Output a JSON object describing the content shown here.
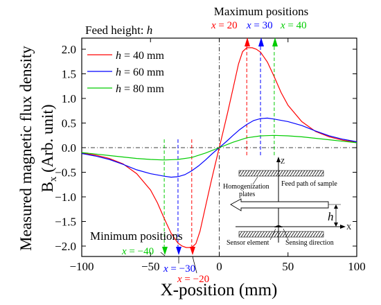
{
  "chart_data": {
    "type": "line",
    "xlabel": "X-position (mm)",
    "ylabel_line1": "Measured magnetic flux density",
    "ylabel_line2": "B",
    "ylabel_sub": "x",
    "ylabel_unit": " (Arb. unit)",
    "xlim": [
      -100,
      100
    ],
    "ylim": [
      -2.2,
      2.2
    ],
    "xticks": [
      -100,
      -50,
      0,
      50,
      100
    ],
    "yticks": [
      2.0,
      1.5,
      1.0,
      0.5,
      0.0,
      -0.5,
      -1.0,
      -1.5,
      -2.0
    ],
    "legend_position": "top-left",
    "feed_height_label": "Feed height: ",
    "feed_height_var": "h",
    "series": [
      {
        "name": "h = 40 mm",
        "name_var": "h",
        "name_rest": " = 40 mm",
        "color": "#ff0000",
        "points": [
          [
            -100,
            -0.11
          ],
          [
            -90,
            -0.15
          ],
          [
            -80,
            -0.22
          ],
          [
            -70,
            -0.33
          ],
          [
            -60,
            -0.53
          ],
          [
            -50,
            -0.86
          ],
          [
            -45,
            -1.12
          ],
          [
            -40,
            -1.44
          ],
          [
            -35,
            -1.74
          ],
          [
            -30,
            -1.94
          ],
          [
            -27,
            -2.0
          ],
          [
            -24,
            -2.03
          ],
          [
            -20,
            -2.03
          ],
          [
            -17,
            -1.95
          ],
          [
            -14,
            -1.7
          ],
          [
            -10,
            -1.2
          ],
          [
            -6,
            -0.7
          ],
          [
            -3,
            -0.35
          ],
          [
            0,
            0.0
          ],
          [
            3,
            0.35
          ],
          [
            6,
            0.7
          ],
          [
            10,
            1.2
          ],
          [
            14,
            1.7
          ],
          [
            17,
            1.95
          ],
          [
            20,
            2.03
          ],
          [
            24,
            2.03
          ],
          [
            27,
            2.0
          ],
          [
            30,
            1.94
          ],
          [
            35,
            1.74
          ],
          [
            40,
            1.44
          ],
          [
            45,
            1.12
          ],
          [
            50,
            0.86
          ],
          [
            60,
            0.53
          ],
          [
            70,
            0.33
          ],
          [
            80,
            0.22
          ],
          [
            90,
            0.15
          ],
          [
            100,
            0.11
          ]
        ]
      },
      {
        "name": "h = 60 mm",
        "name_var": "h",
        "name_rest": " = 60 mm",
        "color": "#0000ff",
        "points": [
          [
            -100,
            -0.12
          ],
          [
            -90,
            -0.17
          ],
          [
            -80,
            -0.24
          ],
          [
            -70,
            -0.34
          ],
          [
            -60,
            -0.45
          ],
          [
            -50,
            -0.53
          ],
          [
            -40,
            -0.58
          ],
          [
            -35,
            -0.6
          ],
          [
            -30,
            -0.59
          ],
          [
            -25,
            -0.55
          ],
          [
            -20,
            -0.47
          ],
          [
            -15,
            -0.37
          ],
          [
            -10,
            -0.25
          ],
          [
            -5,
            -0.12
          ],
          [
            0,
            0.0
          ],
          [
            5,
            0.12
          ],
          [
            10,
            0.25
          ],
          [
            15,
            0.37
          ],
          [
            20,
            0.47
          ],
          [
            25,
            0.55
          ],
          [
            30,
            0.59
          ],
          [
            35,
            0.6
          ],
          [
            40,
            0.58
          ],
          [
            50,
            0.53
          ],
          [
            60,
            0.45
          ],
          [
            70,
            0.34
          ],
          [
            80,
            0.24
          ],
          [
            90,
            0.17
          ],
          [
            100,
            0.12
          ]
        ]
      },
      {
        "name": "h = 80 mm",
        "name_var": "h",
        "name_rest": " = 80 mm",
        "color": "#00cc00",
        "points": [
          [
            -100,
            -0.1
          ],
          [
            -90,
            -0.13
          ],
          [
            -80,
            -0.16
          ],
          [
            -70,
            -0.19
          ],
          [
            -60,
            -0.22
          ],
          [
            -50,
            -0.24
          ],
          [
            -40,
            -0.25
          ],
          [
            -30,
            -0.24
          ],
          [
            -20,
            -0.2
          ],
          [
            -10,
            -0.11
          ],
          [
            0,
            0.0
          ],
          [
            10,
            0.11
          ],
          [
            20,
            0.2
          ],
          [
            30,
            0.24
          ],
          [
            40,
            0.25
          ],
          [
            50,
            0.24
          ],
          [
            60,
            0.22
          ],
          [
            70,
            0.19
          ],
          [
            80,
            0.16
          ],
          [
            90,
            0.13
          ],
          [
            100,
            0.1
          ]
        ]
      }
    ],
    "marker_lines": [
      {
        "x": 20,
        "y": 2.03,
        "color": "#ff0000"
      },
      {
        "x": 30,
        "y": 0.59,
        "color": "#0000ff"
      },
      {
        "x": 40,
        "y": 0.25,
        "color": "#00cc00"
      },
      {
        "x": -20,
        "y": -2.03,
        "color": "#ff0000"
      },
      {
        "x": -30,
        "y": -0.59,
        "color": "#0000ff"
      },
      {
        "x": -40,
        "y": -0.25,
        "color": "#00cc00"
      }
    ],
    "annotations": {
      "max_title": "Maximum positions",
      "min_title": "Minimum positions",
      "max_labels": [
        {
          "var": "x",
          "text": " = 20",
          "color": "#ff0000"
        },
        {
          "var": "x",
          "text": " = 30",
          "color": "#0000ff"
        },
        {
          "var": "x",
          "text": " = 40",
          "color": "#00cc00"
        }
      ],
      "min_labels": [
        {
          "var": "x",
          "text": " = −40",
          "color": "#00cc00"
        },
        {
          "var": "x",
          "text": " = −30",
          "color": "#0000ff"
        },
        {
          "var": "x",
          "text": " = −20",
          "color": "#ff0000"
        }
      ]
    },
    "inset": {
      "z_label": "Z",
      "x_label": "X",
      "h_label": "h",
      "homogenization_label_1": "Homogenization",
      "homogenization_label_2": "plates",
      "feed_path_label": "Feed path of sample",
      "sensor_label": "Sensor element",
      "sensing_label": "Sensing direction"
    }
  }
}
